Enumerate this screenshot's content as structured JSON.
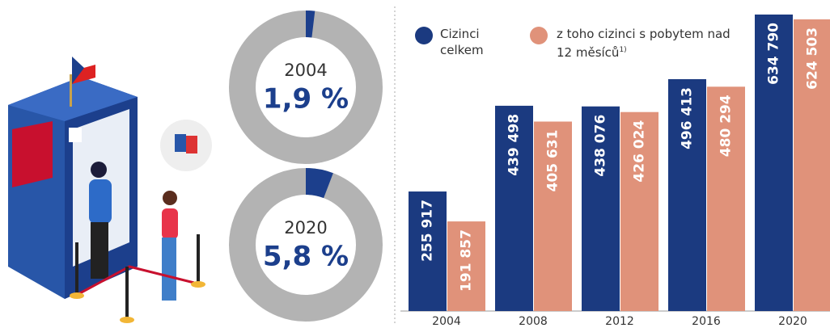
{
  "chart_data": [
    {
      "type": "donut",
      "title": "2004",
      "values": [
        1.9
      ],
      "value_labels": [
        "1,9 %"
      ],
      "color": "#1c3f8c",
      "rest_color": "#b3b3b3"
    },
    {
      "type": "donut",
      "title": "2020",
      "values": [
        5.8
      ],
      "value_labels": [
        "5,8 %"
      ],
      "color": "#1c3f8c",
      "rest_color": "#b3b3b3"
    },
    {
      "type": "bar",
      "categories": [
        "2004",
        "2008",
        "2012",
        "2016",
        "2020"
      ],
      "footnote_marker": "1)",
      "series": [
        {
          "name": "Cizinci celkem",
          "color": "#1b3a80",
          "values": [
            255917,
            439498,
            438076,
            496413,
            634790
          ],
          "value_labels": [
            "255 917",
            "439 498",
            "438 076",
            "496 413",
            "634 790"
          ]
        },
        {
          "name": "z toho cizinci s pobytem nad 12 měsíců",
          "color": "#e0927a",
          "values": [
            191857,
            405631,
            426024,
            480294,
            624503
          ],
          "value_labels": [
            "191 857",
            "405 631",
            "426 024",
            "480 294",
            "624 503"
          ]
        }
      ]
    }
  ]
}
